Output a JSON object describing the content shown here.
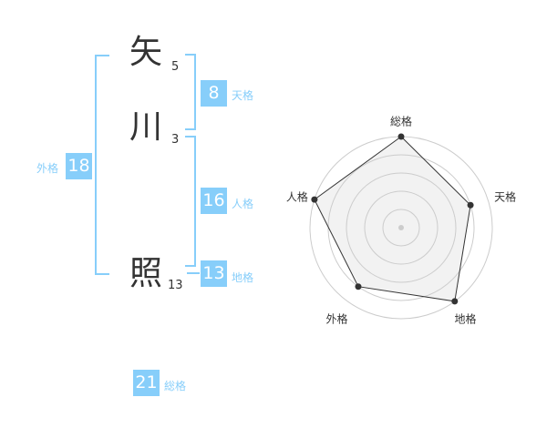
{
  "name": {
    "chars": [
      {
        "char": "矢",
        "strokes": "5"
      },
      {
        "char": "川",
        "strokes": "3"
      },
      {
        "char": "照",
        "strokes": "13"
      }
    ]
  },
  "fortunes": {
    "tenkaku": {
      "label": "天格",
      "value": "8"
    },
    "jinkaku": {
      "label": "人格",
      "value": "16"
    },
    "chikaku": {
      "label": "地格",
      "value": "13"
    },
    "gaikaku": {
      "label": "外格",
      "value": "18"
    },
    "soukaku": {
      "label": "総格",
      "value": "21"
    }
  },
  "colors": {
    "accent": "#87cefa",
    "text": "#333333",
    "ring": "#cccccc",
    "fill": "#f2f2f2"
  },
  "chart_data": {
    "type": "radar",
    "axes": [
      "総格",
      "天格",
      "地格",
      "外格",
      "人格"
    ],
    "values": [
      5,
      4,
      5,
      4,
      5
    ],
    "range": [
      0,
      5
    ],
    "rings": 5
  }
}
